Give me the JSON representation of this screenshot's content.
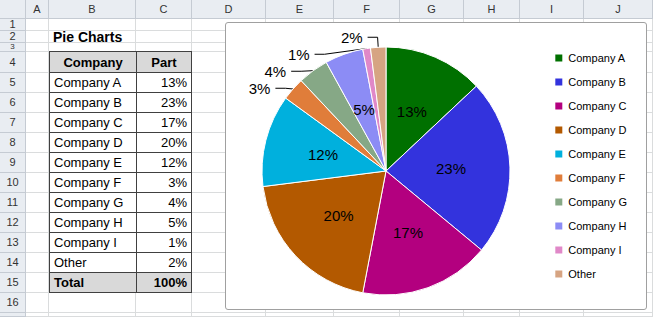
{
  "sheet": {
    "columns": [
      "A",
      "B",
      "C",
      "D",
      "E",
      "F",
      "G",
      "H",
      "I",
      "J"
    ],
    "rows": [
      1,
      2,
      3,
      4,
      5,
      6,
      7,
      8,
      9,
      10,
      11,
      12,
      13,
      14,
      15,
      16
    ],
    "title": "Pie Charts",
    "table": {
      "header": [
        "Company",
        "Part"
      ],
      "rows": [
        [
          "Company A",
          "13%"
        ],
        [
          "Company B",
          "23%"
        ],
        [
          "Company C",
          "17%"
        ],
        [
          "Company D",
          "20%"
        ],
        [
          "Company E",
          "12%"
        ],
        [
          "Company F",
          "3%"
        ],
        [
          "Company G",
          "4%"
        ],
        [
          "Company H",
          "5%"
        ],
        [
          "Company I",
          "1%"
        ],
        [
          "Other",
          "2%"
        ]
      ],
      "total": [
        "Total",
        "100%"
      ]
    }
  },
  "chart_data": {
    "type": "pie",
    "categories": [
      "Company A",
      "Company B",
      "Company C",
      "Company D",
      "Company E",
      "Company F",
      "Company G",
      "Company H",
      "Company I",
      "Other"
    ],
    "values": [
      13,
      23,
      17,
      20,
      12,
      3,
      4,
      5,
      1,
      2
    ],
    "value_labels": [
      "13%",
      "23%",
      "17%",
      "20%",
      "12%",
      "3%",
      "4%",
      "5%",
      "1%",
      "2%"
    ],
    "colors": [
      "#007000",
      "#3333dd",
      "#b3007f",
      "#b35900",
      "#00b0dd",
      "#e07d3a",
      "#86a886",
      "#8c8cf5",
      "#e088c8",
      "#d6a482"
    ],
    "data_labels": true,
    "legend": "right"
  }
}
